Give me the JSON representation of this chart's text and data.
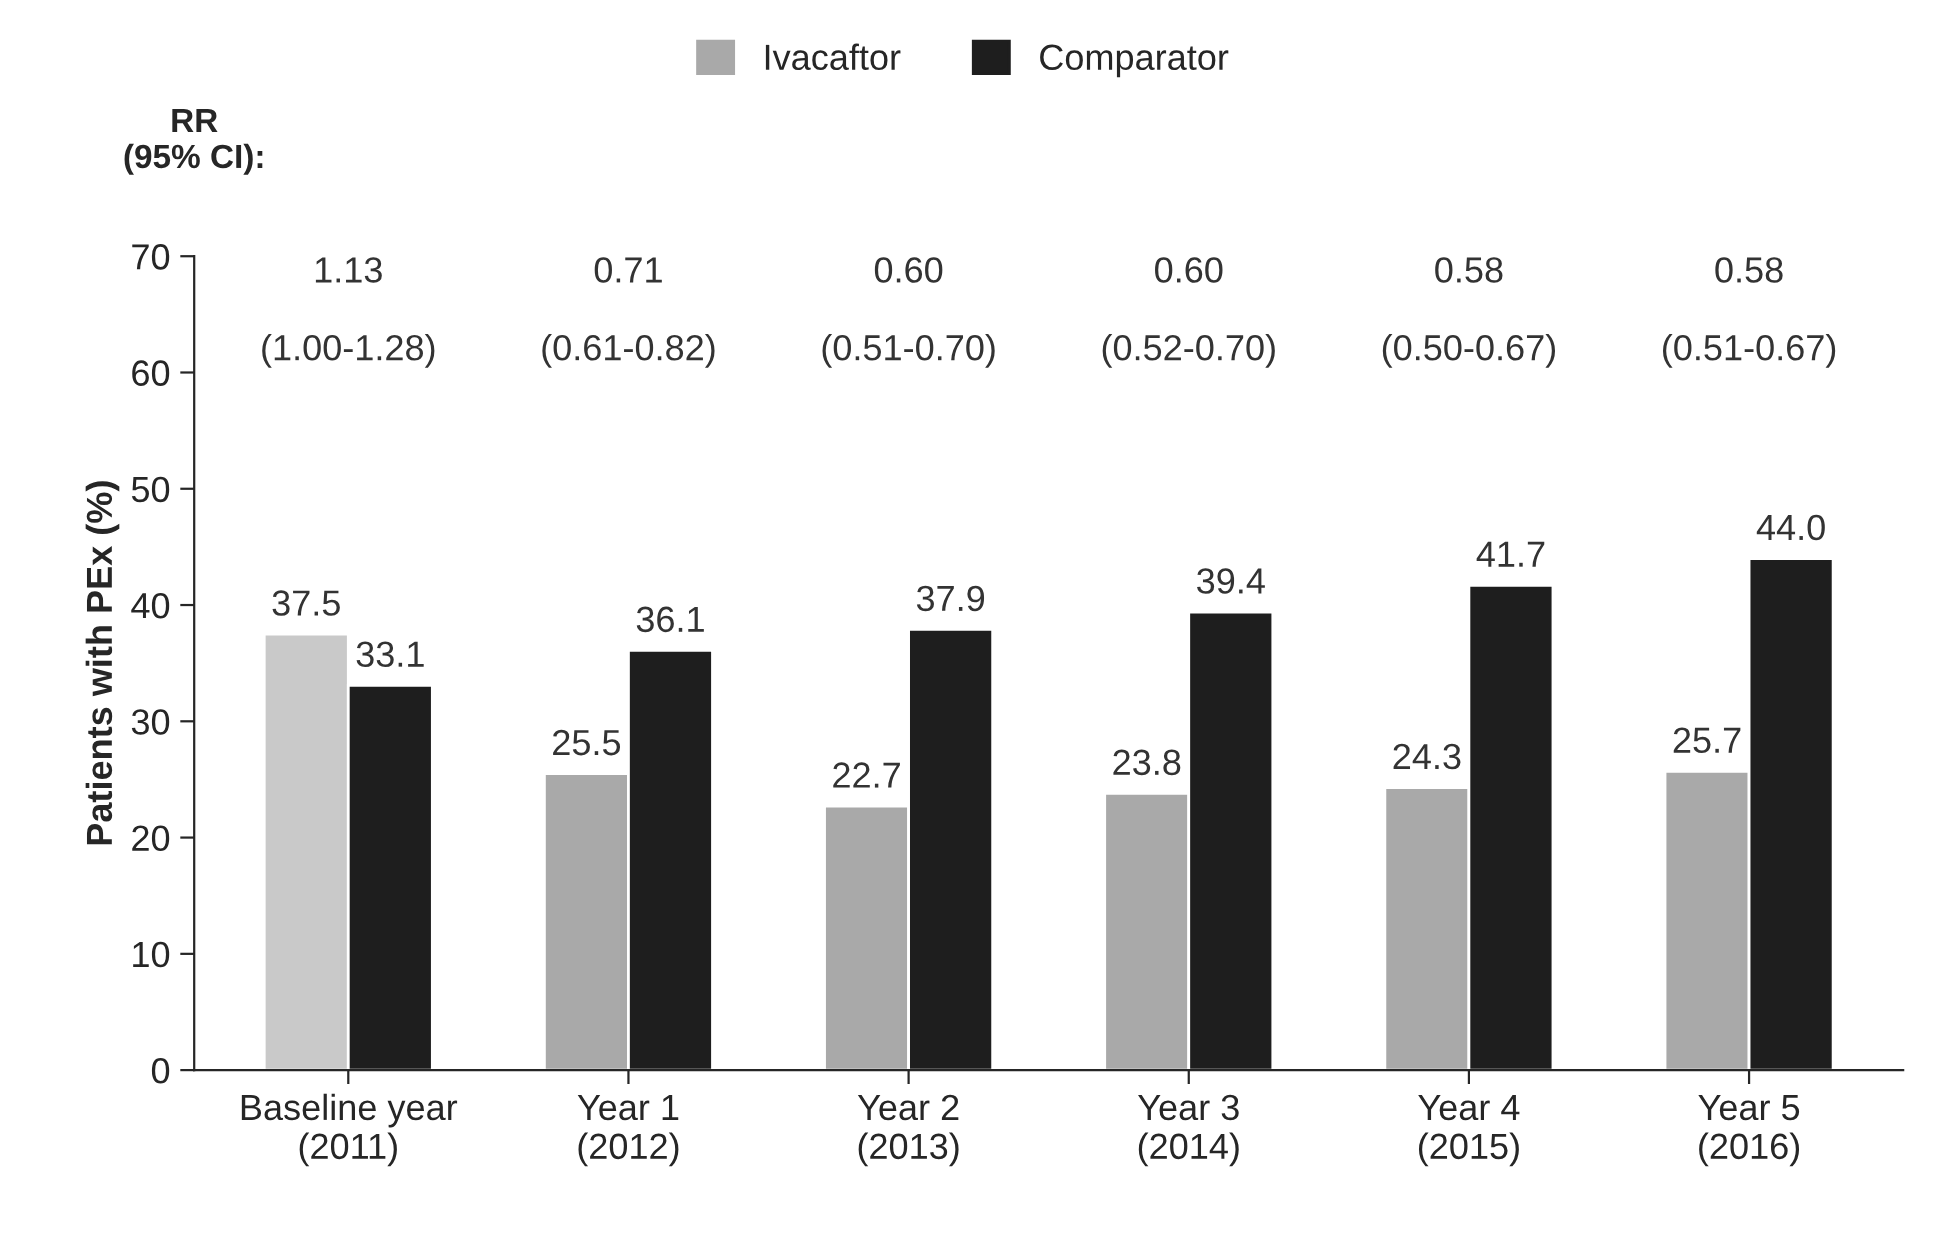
{
  "chart_data": {
    "type": "bar",
    "ylabel": "Patients with PEx (%)",
    "categories": [
      "Baseline year\n(2011)",
      "Year 1\n(2012)",
      "Year 2\n(2013)",
      "Year 3\n(2014)",
      "Year 4\n(2015)",
      "Year 5\n(2016)"
    ],
    "series": [
      {
        "name": "Ivacaftor",
        "color": "#a9a9a9",
        "colors": [
          "#c9c9c9",
          "#a9a9a9",
          "#a9a9a9",
          "#a9a9a9",
          "#a9a9a9",
          "#a9a9a9"
        ],
        "values": [
          37.5,
          25.5,
          22.7,
          23.8,
          24.3,
          25.7
        ]
      },
      {
        "name": "Comparator",
        "color": "#1e1e1e",
        "values": [
          33.1,
          36.1,
          37.9,
          39.4,
          41.7,
          44.0
        ],
        "value_labels": [
          "33.1",
          "36.1",
          "37.9",
          "39.4",
          "41.7",
          "44.0"
        ]
      }
    ],
    "ylim": [
      0,
      70
    ],
    "yticks": [
      0,
      10,
      20,
      30,
      40,
      50,
      60,
      70
    ],
    "data_labels": true,
    "legend": "top",
    "grid": false,
    "annotations": [
      "RR\n(95% CI):",
      "1.13\n\n(1.00-1.28)",
      "0.71\n\n(0.61-0.82)",
      "0.60\n\n(0.51-0.70)",
      "0.60\n\n(0.52-0.70)",
      "0.58\n\n(0.50-0.67)",
      "0.58\n\n(0.51-0.67)"
    ]
  }
}
